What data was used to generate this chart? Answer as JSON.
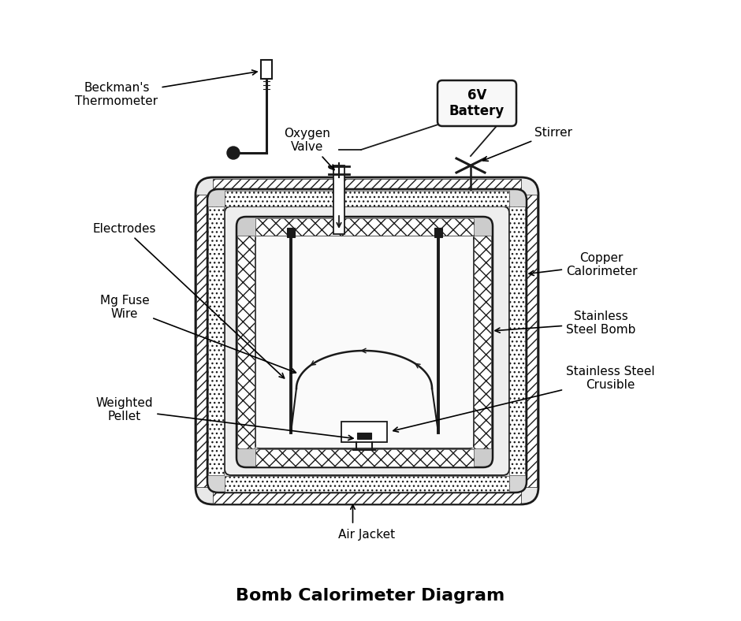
{
  "title": "Bomb Calorimeter Diagram",
  "background_color": "#ffffff",
  "title_fontsize": 16,
  "label_fontsize": 11,
  "labels": {
    "beckmans_thermometer": "Beckman's\nThermometer",
    "oxygen_valve": "Oxygen\nValve",
    "battery": "6V\nBattery",
    "stirrer": "Stirrer",
    "electrodes": "Electrodes",
    "copper_calorimeter": "Copper\nCalorimeter",
    "mg_fuse_wire": "Mg Fuse\nWire",
    "stainless_steel_bomb": "Stainless\nSteel Bomb",
    "stainless_steel_crucible": "Stainless Steel\nCrusible",
    "weighted_pellet": "Weighted\nPellet",
    "air_jacket": "Air Jacket"
  },
  "colors": {
    "outline": "#1a1a1a",
    "white": "#ffffff",
    "light_gray": "#f2f2f2",
    "battery_fill": "#f8f8f8",
    "inner_fill": "#fafafa",
    "mid_gray": "#e0e0e0"
  }
}
